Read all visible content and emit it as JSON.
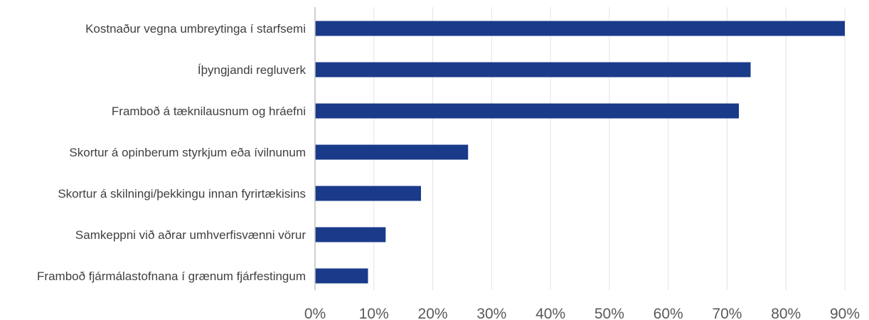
{
  "chart_data": {
    "type": "bar",
    "orientation": "horizontal",
    "categories": [
      "Kostnaður vegna umbreytinga í starfsemi",
      "Íþyngjandi regluverk",
      "Framboð á tæknilausnum og hráefni",
      "Skortur á opinberum styrkjum eða ívilnunum",
      "Skortur á skilningi/þekkingu innan fyrirtækisins",
      "Samkeppni við aðrar umhverfisvænni vörur",
      "Framboð fjármálastofnana í grænum fjárfestingum"
    ],
    "values": [
      90,
      74,
      72,
      26,
      18,
      12,
      9
    ],
    "x_ticks": [
      "0%",
      "10%",
      "20%",
      "30%",
      "40%",
      "50%",
      "60%",
      "70%",
      "80%",
      "90%"
    ],
    "xlim": [
      0,
      90
    ],
    "unit": "%",
    "bar_color": "#1a3a8a",
    "grid": "vertical",
    "title": "",
    "xlabel": "",
    "ylabel": ""
  }
}
